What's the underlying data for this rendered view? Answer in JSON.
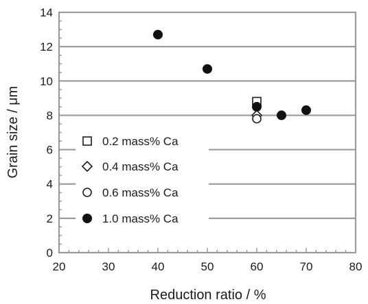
{
  "chart_data": {
    "type": "scatter",
    "xlabel": "Reduction ratio / %",
    "ylabel": "Grain size / μm",
    "xlim": [
      20,
      80
    ],
    "ylim": [
      0,
      14
    ],
    "xticks": [
      "20",
      "30",
      "40",
      "50",
      "60",
      "70",
      "80"
    ],
    "yticks": [
      "0",
      "2",
      "4",
      "6",
      "8",
      "10",
      "12",
      "14"
    ],
    "grid": "horizontal",
    "legend": "bottom-left",
    "series": [
      {
        "name": "0.2 mass% Ca",
        "marker": "open-square",
        "points": [
          [
            60,
            8.8
          ]
        ]
      },
      {
        "name": "0.4 mass% Ca",
        "marker": "open-diamond",
        "points": [
          [
            60,
            8.0
          ]
        ]
      },
      {
        "name": "0.6 mass% Ca",
        "marker": "open-circle",
        "points": [
          [
            60,
            7.8
          ]
        ]
      },
      {
        "name": "1.0 mass% Ca",
        "marker": "filled-circle",
        "points": [
          [
            40,
            12.7
          ],
          [
            50,
            10.7
          ],
          [
            60,
            8.5
          ],
          [
            65,
            8.0
          ],
          [
            70,
            8.3
          ]
        ]
      }
    ]
  }
}
